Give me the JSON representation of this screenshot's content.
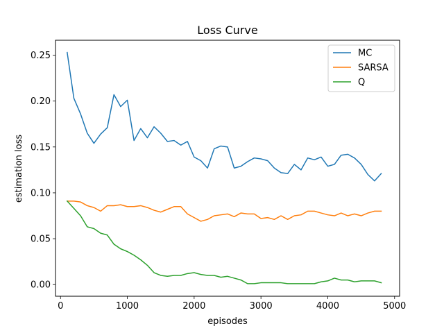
{
  "chart_data": {
    "type": "line",
    "title": "Loss Curve",
    "xlabel": "episodes",
    "ylabel": "estimation loss",
    "xlim": [
      -75,
      5075
    ],
    "ylim": [
      -0.0127,
      0.2663
    ],
    "xticks": [
      0,
      1000,
      2000,
      3000,
      4000,
      5000
    ],
    "xtick_labels": [
      "0",
      "1000",
      "2000",
      "3000",
      "4000",
      "5000"
    ],
    "yticks": [
      0.0,
      0.05,
      0.1,
      0.15,
      0.2,
      0.25
    ],
    "ytick_labels": [
      "0.00",
      "0.05",
      "0.10",
      "0.15",
      "0.20",
      "0.25"
    ],
    "grid": false,
    "legend_position": "top-right",
    "x": [
      100,
      200,
      300,
      400,
      500,
      600,
      700,
      800,
      900,
      1000,
      1100,
      1200,
      1300,
      1400,
      1500,
      1600,
      1700,
      1800,
      1900,
      2000,
      2100,
      2200,
      2300,
      2400,
      2500,
      2600,
      2700,
      2800,
      2900,
      3000,
      3100,
      3200,
      3300,
      3400,
      3500,
      3600,
      3700,
      3800,
      3900,
      4000,
      4100,
      4200,
      4300,
      4400,
      4500,
      4600,
      4700,
      4800
    ],
    "series": [
      {
        "name": "MC",
        "color": "#1f77b4",
        "values": [
          0.253,
          0.203,
          0.186,
          0.165,
          0.154,
          0.164,
          0.171,
          0.207,
          0.194,
          0.201,
          0.157,
          0.17,
          0.16,
          0.172,
          0.165,
          0.156,
          0.157,
          0.152,
          0.156,
          0.139,
          0.135,
          0.127,
          0.148,
          0.151,
          0.15,
          0.127,
          0.129,
          0.134,
          0.138,
          0.137,
          0.135,
          0.127,
          0.122,
          0.121,
          0.131,
          0.125,
          0.138,
          0.136,
          0.139,
          0.129,
          0.131,
          0.141,
          0.142,
          0.138,
          0.131,
          0.12,
          0.113,
          0.121
        ]
      },
      {
        "name": "SARSA",
        "color": "#ff7f0e",
        "values": [
          0.091,
          0.091,
          0.09,
          0.086,
          0.084,
          0.08,
          0.086,
          0.086,
          0.087,
          0.085,
          0.085,
          0.086,
          0.084,
          0.081,
          0.079,
          0.082,
          0.085,
          0.085,
          0.077,
          0.073,
          0.069,
          0.071,
          0.075,
          0.076,
          0.077,
          0.074,
          0.078,
          0.077,
          0.077,
          0.072,
          0.073,
          0.071,
          0.075,
          0.071,
          0.075,
          0.076,
          0.08,
          0.08,
          0.078,
          0.076,
          0.075,
          0.078,
          0.075,
          0.077,
          0.075,
          0.078,
          0.08,
          0.08
        ]
      },
      {
        "name": "Q",
        "color": "#2ca02c",
        "values": [
          0.091,
          0.083,
          0.075,
          0.063,
          0.061,
          0.056,
          0.054,
          0.044,
          0.039,
          0.036,
          0.032,
          0.027,
          0.021,
          0.013,
          0.01,
          0.009,
          0.01,
          0.01,
          0.012,
          0.013,
          0.011,
          0.01,
          0.01,
          0.008,
          0.009,
          0.007,
          0.005,
          0.001,
          0.001,
          0.002,
          0.002,
          0.002,
          0.002,
          0.001,
          0.001,
          0.001,
          0.001,
          0.001,
          0.003,
          0.004,
          0.007,
          0.005,
          0.005,
          0.003,
          0.004,
          0.004,
          0.004,
          0.002
        ]
      }
    ]
  }
}
